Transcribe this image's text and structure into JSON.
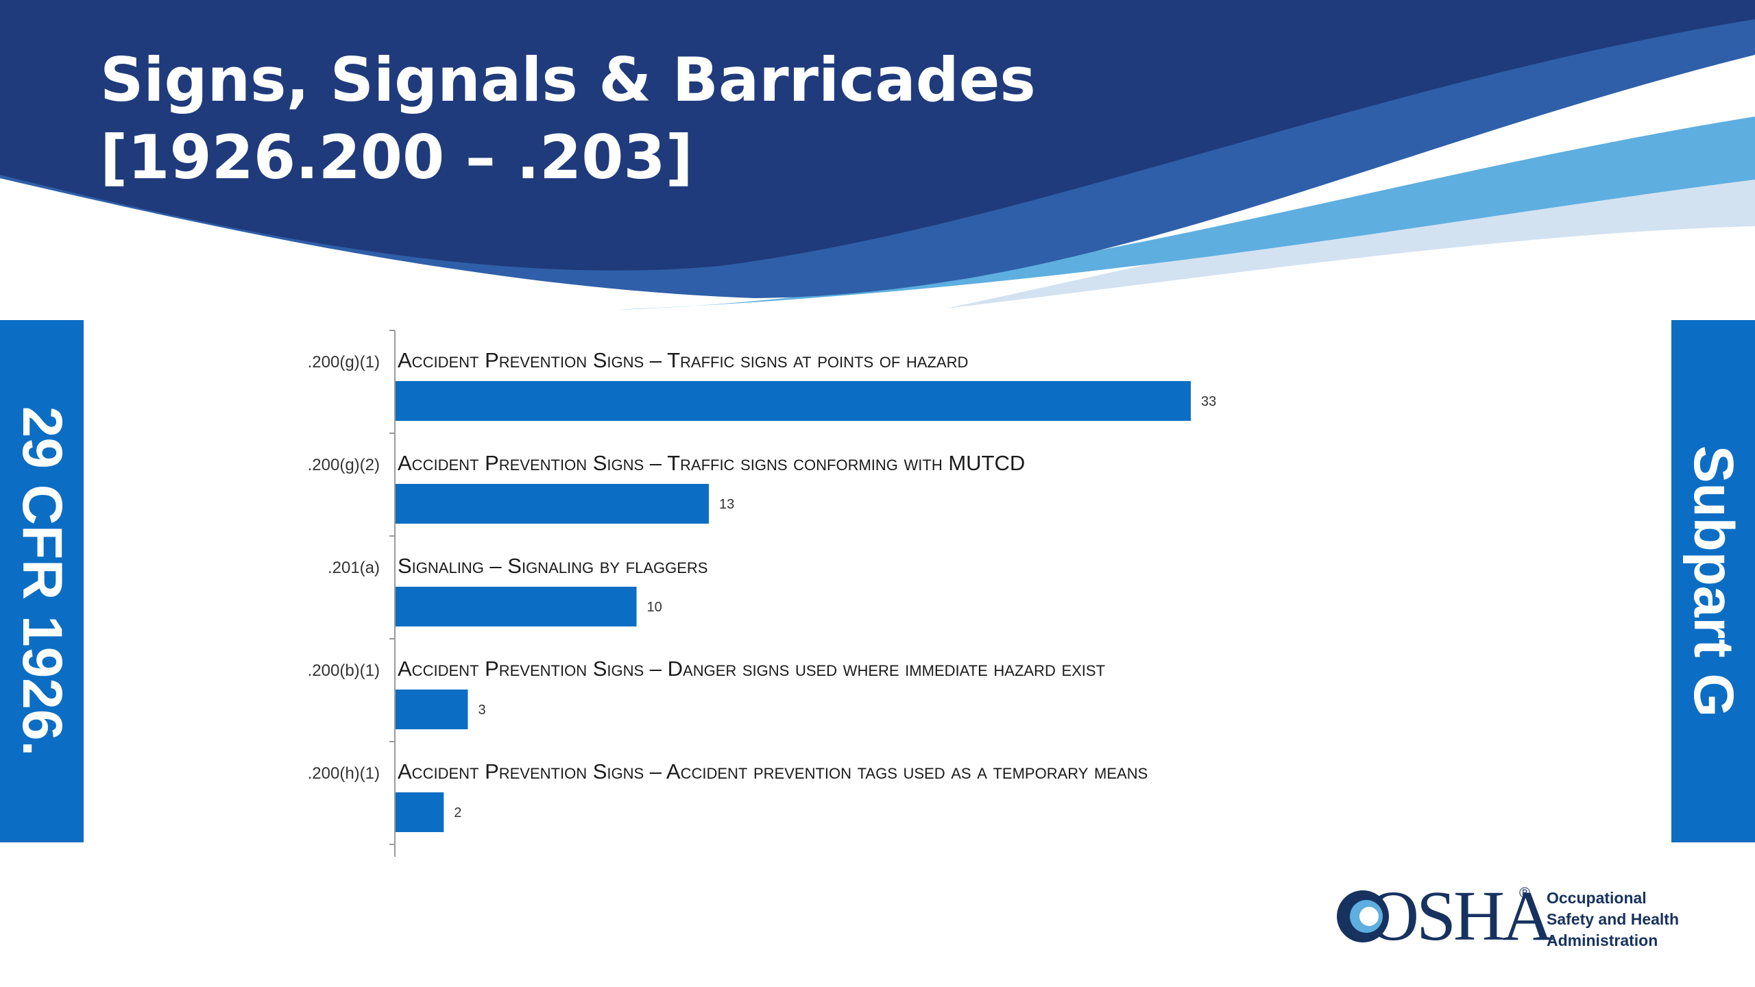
{
  "slide": {
    "title_line_1": "Signs, Signals & Barricades",
    "title_line_2": "[1926.200 – .203]",
    "left_tab": "29 CFR 1926.",
    "right_tab": "Subpart G"
  },
  "logo": {
    "wordmark": "OSHA",
    "registered": "®",
    "agency_lines": [
      "Occupational",
      "Safety and Health",
      "Administration"
    ]
  },
  "colors": {
    "banner_navy": "#1f3b7c",
    "banner_mid": "#2f5fa8",
    "banner_light": "#5eaee0",
    "banner_pale": "#d3e2f1",
    "bar": "#0b6ec4",
    "tab": "#0b6ec4",
    "logo": "#17325f"
  },
  "chart_data": {
    "type": "bar",
    "orientation": "horizontal",
    "categories": [
      ".200(g)(1)",
      ".200(g)(2)",
      ".201(a)",
      ".200(b)(1)",
      ".200(h)(1)"
    ],
    "bar_titles": [
      "Accident Prevention Signs – Traffic signs at points of hazard",
      "Accident Prevention Signs – Traffic signs conforming with MUTCD",
      "Signaling – Signaling by flaggers",
      "Accident Prevention Signs – Danger signs used where immediate hazard exist",
      "Accident Prevention Signs – Accident prevention tags used as a temporary means"
    ],
    "values": [
      33,
      13,
      10,
      3,
      2
    ],
    "data_labels": [
      "33",
      "13",
      "10",
      "3",
      "2"
    ],
    "xlim": [
      0,
      33
    ],
    "grid": false,
    "legend": "none"
  }
}
